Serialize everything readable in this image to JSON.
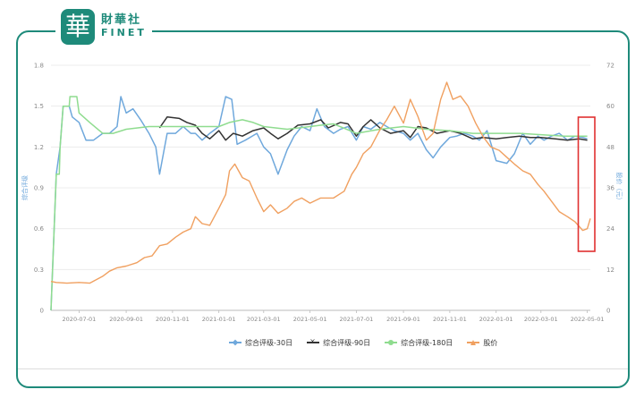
{
  "logo": {
    "seal_char": "華",
    "name_cn": "財華社",
    "name_en": "FINET"
  },
  "chart_data": {
    "type": "line",
    "ylabel_left": "综合评级",
    "ylabel_right": "股价（元）",
    "ylim_left": [
      0,
      1.8
    ],
    "ylim_right": [
      0,
      72
    ],
    "left_ticks": [
      "0",
      "0.3",
      "0.6",
      "0.9",
      "1.2",
      "1.5",
      "1.8"
    ],
    "right_ticks": [
      "0",
      "12",
      "24",
      "36",
      "48",
      "60",
      "72"
    ],
    "x_ticks": [
      "2020-07-01",
      "2020-09-01",
      "2020-11-01",
      "2021-01-01",
      "2021-03-01",
      "2021-05-01",
      "2021-07-01",
      "2021-09-01",
      "2021-11-01",
      "2022-01-01",
      "2022-03-01",
      "2022-05-01"
    ],
    "x_range": [
      "2020-05-25",
      "2022-05-05"
    ],
    "grid": true,
    "legend_position": "bottom",
    "series": [
      {
        "name": "综合评级-30日",
        "axis": "left",
        "color": "#6fa8dc",
        "marker": "diamond",
        "points": [
          [
            "2020-05-25",
            0.0
          ],
          [
            "2020-06-01",
            1.0
          ],
          [
            "2020-06-06",
            1.2
          ],
          [
            "2020-06-10",
            1.5
          ],
          [
            "2020-06-18",
            1.5
          ],
          [
            "2020-06-22",
            1.42
          ],
          [
            "2020-07-01",
            1.38
          ],
          [
            "2020-07-10",
            1.25
          ],
          [
            "2020-07-20",
            1.25
          ],
          [
            "2020-08-01",
            1.3
          ],
          [
            "2020-08-10",
            1.3
          ],
          [
            "2020-08-20",
            1.35
          ],
          [
            "2020-08-25",
            1.57
          ],
          [
            "2020-09-01",
            1.45
          ],
          [
            "2020-09-10",
            1.48
          ],
          [
            "2020-09-20",
            1.4
          ],
          [
            "2020-10-01",
            1.3
          ],
          [
            "2020-10-10",
            1.2
          ],
          [
            "2020-10-15",
            1.0
          ],
          [
            "2020-10-25",
            1.3
          ],
          [
            "2020-11-05",
            1.3
          ],
          [
            "2020-11-15",
            1.35
          ],
          [
            "2020-11-25",
            1.3
          ],
          [
            "2020-12-01",
            1.3
          ],
          [
            "2020-12-10",
            1.25
          ],
          [
            "2020-12-20",
            1.3
          ],
          [
            "2021-01-01",
            1.35
          ],
          [
            "2021-01-10",
            1.57
          ],
          [
            "2021-01-18",
            1.55
          ],
          [
            "2021-01-25",
            1.22
          ],
          [
            "2021-02-05",
            1.25
          ],
          [
            "2021-02-20",
            1.3
          ],
          [
            "2021-03-01",
            1.2
          ],
          [
            "2021-03-10",
            1.15
          ],
          [
            "2021-03-20",
            1.0
          ],
          [
            "2021-04-01",
            1.18
          ],
          [
            "2021-04-10",
            1.28
          ],
          [
            "2021-04-20",
            1.35
          ],
          [
            "2021-05-01",
            1.32
          ],
          [
            "2021-05-10",
            1.48
          ],
          [
            "2021-05-20",
            1.35
          ],
          [
            "2021-06-01",
            1.3
          ],
          [
            "2021-06-10",
            1.33
          ],
          [
            "2021-06-20",
            1.35
          ],
          [
            "2021-07-01",
            1.25
          ],
          [
            "2021-07-10",
            1.35
          ],
          [
            "2021-07-20",
            1.33
          ],
          [
            "2021-08-01",
            1.38
          ],
          [
            "2021-08-10",
            1.35
          ],
          [
            "2021-08-20",
            1.32
          ],
          [
            "2021-09-01",
            1.3
          ],
          [
            "2021-09-10",
            1.25
          ],
          [
            "2021-09-20",
            1.3
          ],
          [
            "2021-10-01",
            1.18
          ],
          [
            "2021-10-10",
            1.12
          ],
          [
            "2021-10-20",
            1.2
          ],
          [
            "2021-11-01",
            1.27
          ],
          [
            "2021-11-10",
            1.28
          ],
          [
            "2021-11-20",
            1.3
          ],
          [
            "2021-12-01",
            1.28
          ],
          [
            "2021-12-10",
            1.25
          ],
          [
            "2021-12-20",
            1.32
          ],
          [
            "2022-01-01",
            1.1
          ],
          [
            "2022-01-15",
            1.08
          ],
          [
            "2022-01-25",
            1.15
          ],
          [
            "2022-02-05",
            1.3
          ],
          [
            "2022-02-15",
            1.22
          ],
          [
            "2022-02-25",
            1.28
          ],
          [
            "2022-03-05",
            1.25
          ],
          [
            "2022-03-15",
            1.28
          ],
          [
            "2022-03-25",
            1.3
          ],
          [
            "2022-04-05",
            1.25
          ],
          [
            "2022-04-15",
            1.28
          ],
          [
            "2022-04-25",
            1.27
          ],
          [
            "2022-05-01",
            1.26
          ]
        ]
      },
      {
        "name": "综合评级-90日",
        "axis": "left",
        "color": "#333333",
        "marker": "cross",
        "points": [
          [
            "2020-10-15",
            1.34
          ],
          [
            "2020-10-25",
            1.42
          ],
          [
            "2020-11-10",
            1.41
          ],
          [
            "2020-11-20",
            1.38
          ],
          [
            "2020-12-01",
            1.36
          ],
          [
            "2020-12-10",
            1.3
          ],
          [
            "2020-12-20",
            1.26
          ],
          [
            "2021-01-01",
            1.32
          ],
          [
            "2021-01-10",
            1.25
          ],
          [
            "2021-01-20",
            1.3
          ],
          [
            "2021-02-01",
            1.28
          ],
          [
            "2021-02-15",
            1.32
          ],
          [
            "2021-03-01",
            1.34
          ],
          [
            "2021-03-10",
            1.3
          ],
          [
            "2021-03-20",
            1.26
          ],
          [
            "2021-04-01",
            1.3
          ],
          [
            "2021-04-15",
            1.36
          ],
          [
            "2021-05-01",
            1.37
          ],
          [
            "2021-05-15",
            1.4
          ],
          [
            "2021-05-25",
            1.34
          ],
          [
            "2021-06-10",
            1.38
          ],
          [
            "2021-06-20",
            1.37
          ],
          [
            "2021-07-01",
            1.28
          ],
          [
            "2021-07-10",
            1.35
          ],
          [
            "2021-07-20",
            1.4
          ],
          [
            "2021-08-01",
            1.34
          ],
          [
            "2021-08-15",
            1.3
          ],
          [
            "2021-09-01",
            1.32
          ],
          [
            "2021-09-10",
            1.27
          ],
          [
            "2021-09-20",
            1.35
          ],
          [
            "2021-10-01",
            1.34
          ],
          [
            "2021-10-15",
            1.3
          ],
          [
            "2021-11-01",
            1.32
          ],
          [
            "2021-11-15",
            1.3
          ],
          [
            "2021-12-01",
            1.26
          ],
          [
            "2021-12-15",
            1.27
          ],
          [
            "2022-01-01",
            1.26
          ],
          [
            "2022-01-15",
            1.27
          ],
          [
            "2022-02-01",
            1.28
          ],
          [
            "2022-02-15",
            1.27
          ],
          [
            "2022-03-01",
            1.27
          ],
          [
            "2022-03-20",
            1.26
          ],
          [
            "2022-04-05",
            1.25
          ],
          [
            "2022-04-20",
            1.26
          ],
          [
            "2022-05-01",
            1.25
          ]
        ]
      },
      {
        "name": "综合评级-180日",
        "axis": "left",
        "color": "#8fdc8f",
        "marker": "circle",
        "points": [
          [
            "2020-05-25",
            0.0
          ],
          [
            "2020-06-01",
            1.0
          ],
          [
            "2020-06-05",
            1.0
          ],
          [
            "2020-06-06",
            1.2
          ],
          [
            "2020-06-10",
            1.5
          ],
          [
            "2020-06-18",
            1.5
          ],
          [
            "2020-06-19",
            1.57
          ],
          [
            "2020-06-28",
            1.57
          ],
          [
            "2020-07-01",
            1.45
          ],
          [
            "2020-07-15",
            1.38
          ],
          [
            "2020-08-01",
            1.3
          ],
          [
            "2020-08-15",
            1.3
          ],
          [
            "2020-09-01",
            1.33
          ],
          [
            "2020-10-01",
            1.35
          ],
          [
            "2020-11-01",
            1.35
          ],
          [
            "2020-12-01",
            1.35
          ],
          [
            "2021-01-01",
            1.35
          ],
          [
            "2021-01-15",
            1.38
          ],
          [
            "2021-02-01",
            1.4
          ],
          [
            "2021-02-15",
            1.38
          ],
          [
            "2021-03-01",
            1.35
          ],
          [
            "2021-04-01",
            1.33
          ],
          [
            "2021-05-01",
            1.35
          ],
          [
            "2021-05-15",
            1.36
          ],
          [
            "2021-06-01",
            1.37
          ],
          [
            "2021-07-01",
            1.3
          ],
          [
            "2021-08-01",
            1.33
          ],
          [
            "2021-09-01",
            1.35
          ],
          [
            "2021-10-01",
            1.33
          ],
          [
            "2021-11-01",
            1.32
          ],
          [
            "2021-12-01",
            1.3
          ],
          [
            "2022-01-01",
            1.3
          ],
          [
            "2022-02-01",
            1.3
          ],
          [
            "2022-03-01",
            1.29
          ],
          [
            "2022-04-01",
            1.28
          ],
          [
            "2022-05-01",
            1.28
          ]
        ]
      },
      {
        "name": "股价",
        "axis": "right",
        "color": "#f0a060",
        "marker": "triangle",
        "points": [
          [
            "2020-05-25",
            8.5
          ],
          [
            "2020-06-01",
            8.2
          ],
          [
            "2020-06-15",
            8.0
          ],
          [
            "2020-07-01",
            8.2
          ],
          [
            "2020-07-15",
            8.0
          ],
          [
            "2020-08-01",
            10.0
          ],
          [
            "2020-08-10",
            11.5
          ],
          [
            "2020-08-20",
            12.5
          ],
          [
            "2020-09-01",
            13.0
          ],
          [
            "2020-09-15",
            14.0
          ],
          [
            "2020-09-25",
            15.5
          ],
          [
            "2020-10-05",
            16.0
          ],
          [
            "2020-10-15",
            19.0
          ],
          [
            "2020-10-25",
            19.5
          ],
          [
            "2020-11-05",
            21.5
          ],
          [
            "2020-11-15",
            23.0
          ],
          [
            "2020-11-25",
            24.0
          ],
          [
            "2020-12-01",
            27.5
          ],
          [
            "2020-12-10",
            25.5
          ],
          [
            "2020-12-20",
            25.0
          ],
          [
            "2021-01-01",
            30.0
          ],
          [
            "2021-01-10",
            34.0
          ],
          [
            "2021-01-15",
            41.0
          ],
          [
            "2021-01-22",
            43.0
          ],
          [
            "2021-02-01",
            39.0
          ],
          [
            "2021-02-10",
            38.0
          ],
          [
            "2021-02-20",
            33.0
          ],
          [
            "2021-03-01",
            29.0
          ],
          [
            "2021-03-10",
            31.0
          ],
          [
            "2021-03-20",
            28.5
          ],
          [
            "2021-04-01",
            30.0
          ],
          [
            "2021-04-10",
            32.0
          ],
          [
            "2021-04-20",
            33.0
          ],
          [
            "2021-05-01",
            31.5
          ],
          [
            "2021-05-15",
            33.0
          ],
          [
            "2021-06-01",
            33.0
          ],
          [
            "2021-06-15",
            35.0
          ],
          [
            "2021-06-25",
            40.0
          ],
          [
            "2021-07-01",
            42.0
          ],
          [
            "2021-07-10",
            46.0
          ],
          [
            "2021-07-20",
            48.0
          ],
          [
            "2021-08-01",
            53.0
          ],
          [
            "2021-08-10",
            56.0
          ],
          [
            "2021-08-20",
            60.0
          ],
          [
            "2021-09-01",
            55.0
          ],
          [
            "2021-09-10",
            62.0
          ],
          [
            "2021-09-20",
            57.0
          ],
          [
            "2021-10-01",
            50.0
          ],
          [
            "2021-10-10",
            52.0
          ],
          [
            "2021-10-20",
            62.0
          ],
          [
            "2021-10-28",
            67.0
          ],
          [
            "2021-11-05",
            62.0
          ],
          [
            "2021-11-15",
            63.0
          ],
          [
            "2021-11-25",
            60.0
          ],
          [
            "2021-12-05",
            55.0
          ],
          [
            "2021-12-15",
            51.0
          ],
          [
            "2021-12-25",
            48.0
          ],
          [
            "2022-01-05",
            47.0
          ],
          [
            "2022-01-15",
            45.0
          ],
          [
            "2022-01-25",
            43.0
          ],
          [
            "2022-02-05",
            41.0
          ],
          [
            "2022-02-15",
            40.0
          ],
          [
            "2022-02-25",
            37.0
          ],
          [
            "2022-03-05",
            35.0
          ],
          [
            "2022-03-15",
            32.0
          ],
          [
            "2022-03-25",
            29.0
          ],
          [
            "2022-04-05",
            27.5
          ],
          [
            "2022-04-15",
            26.0
          ],
          [
            "2022-04-25",
            23.5
          ],
          [
            "2022-05-01",
            24.0
          ],
          [
            "2022-05-05",
            27.0
          ]
        ]
      }
    ],
    "highlight": {
      "from": "2022-04-25",
      "to": "2022-05-05",
      "color": "#e03030"
    }
  }
}
